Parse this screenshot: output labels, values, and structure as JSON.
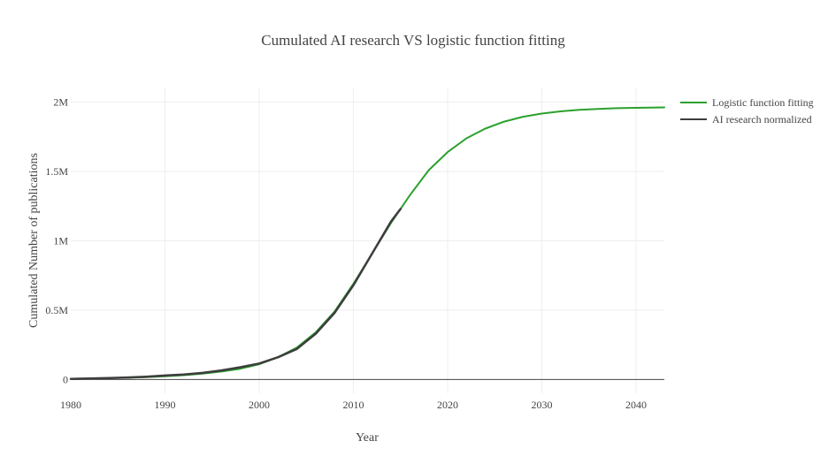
{
  "chart_data": {
    "type": "line",
    "title": "Cumulated AI research VS logistic function fitting",
    "xlabel": "Year",
    "ylabel": "Cumulated Number of publications",
    "xlim": [
      1980,
      2043
    ],
    "ylim": [
      -0.1,
      2.1
    ],
    "x_ticks": [
      1980,
      1990,
      2000,
      2010,
      2020,
      2030,
      2040
    ],
    "x_tick_labels": [
      "1980",
      "1990",
      "2000",
      "2010",
      "2020",
      "2030",
      "2040"
    ],
    "y_ticks": [
      0,
      0.5,
      1,
      1.5,
      2
    ],
    "y_tick_labels": [
      "0",
      "0.5M",
      "1M",
      "1.5M",
      "2M"
    ],
    "y_unit": "millions",
    "grid": true,
    "legend_position": "top-right",
    "series": [
      {
        "name": "Logistic function fitting",
        "color": "#2ca02c",
        "x": [
          1980,
          1982,
          1984,
          1986,
          1988,
          1990,
          1992,
          1994,
          1996,
          1998,
          2000,
          2002,
          2004,
          2006,
          2008,
          2010,
          2012,
          2014,
          2016,
          2018,
          2020,
          2022,
          2024,
          2026,
          2028,
          2030,
          2032,
          2034,
          2036,
          2038,
          2040,
          2043
        ],
        "y": [
          0.005,
          0.007,
          0.009,
          0.012,
          0.017,
          0.023,
          0.031,
          0.042,
          0.057,
          0.077,
          0.11,
          0.16,
          0.23,
          0.34,
          0.49,
          0.69,
          0.91,
          1.13,
          1.33,
          1.51,
          1.64,
          1.74,
          1.81,
          1.86,
          1.895,
          1.918,
          1.934,
          1.945,
          1.952,
          1.957,
          1.96,
          1.963
        ]
      },
      {
        "name": "AI research normalized",
        "color": "#3d3d3d",
        "x": [
          1980,
          1982,
          1984,
          1986,
          1988,
          1990,
          1992,
          1994,
          1996,
          1998,
          2000,
          2002,
          2004,
          2006,
          2008,
          2010,
          2012,
          2014,
          2015
        ],
        "y": [
          0.004,
          0.007,
          0.01,
          0.014,
          0.02,
          0.028,
          0.036,
          0.047,
          0.065,
          0.088,
          0.115,
          0.16,
          0.22,
          0.33,
          0.48,
          0.68,
          0.91,
          1.14,
          1.23
        ]
      }
    ]
  }
}
